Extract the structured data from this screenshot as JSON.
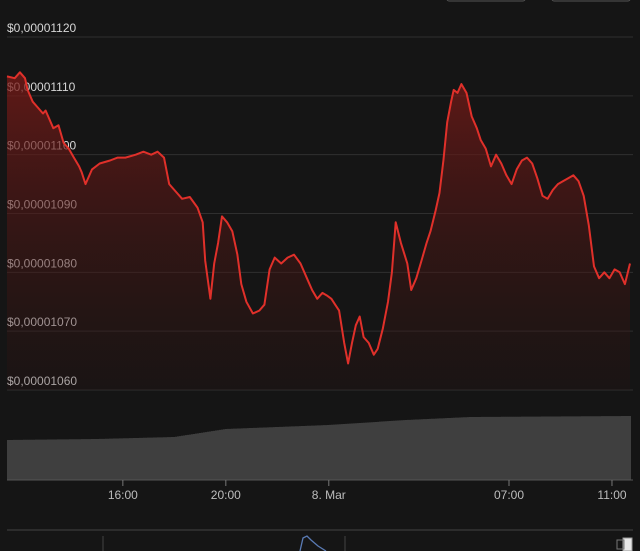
{
  "chart_data": {
    "type": "area",
    "title": "",
    "ylabel": "",
    "xlabel": "",
    "colors": {
      "line": "#e0302a",
      "volume": "#8e8e8e",
      "background": "#151515"
    },
    "y_ticks": [
      "$0,00001120",
      "$0,00001110",
      "$0,00001100",
      "$0,00001090",
      "$0,00001080",
      "$0,00001070",
      "$0,00001060"
    ],
    "y_tick_values": [
      1120,
      1110,
      1100,
      1090,
      1080,
      1070,
      1060
    ],
    "y_unit": "1e-8 USD",
    "ylim": [
      1060,
      1120
    ],
    "x_ticks": [
      "16:00",
      "20:00",
      "8. Mar",
      "07:00",
      "11:00"
    ],
    "x_tick_hours": [
      16,
      20,
      24,
      31,
      35
    ],
    "xlim_hours": [
      11.5,
      35.7
    ],
    "grid": true,
    "legend": "none",
    "series": [
      {
        "values": [
          [
            11.5,
            1113.3
          ],
          [
            11.8,
            1113.0
          ],
          [
            12.0,
            1114.0
          ],
          [
            12.2,
            1113.0
          ],
          [
            12.3,
            1111.0
          ],
          [
            12.5,
            1109.0
          ],
          [
            12.7,
            1108.0
          ],
          [
            12.9,
            1107.0
          ],
          [
            13.0,
            1107.5
          ],
          [
            13.3,
            1104.5
          ],
          [
            13.5,
            1105.0
          ],
          [
            13.7,
            1102.0
          ],
          [
            13.9,
            1101.0
          ],
          [
            14.1,
            1099.5
          ],
          [
            14.3,
            1098.0
          ],
          [
            14.4,
            1097.0
          ],
          [
            14.55,
            1095.0
          ],
          [
            14.8,
            1097.5
          ],
          [
            15.1,
            1098.5
          ],
          [
            15.5,
            1099.0
          ],
          [
            15.8,
            1099.5
          ],
          [
            16.1,
            1099.5
          ],
          [
            16.5,
            1100.0
          ],
          [
            16.8,
            1100.5
          ],
          [
            17.1,
            1100.0
          ],
          [
            17.35,
            1100.5
          ],
          [
            17.6,
            1099.5
          ],
          [
            17.8,
            1095.0
          ],
          [
            18.1,
            1093.5
          ],
          [
            18.3,
            1092.5
          ],
          [
            18.6,
            1092.8
          ],
          [
            18.9,
            1091.0
          ],
          [
            19.1,
            1088.5
          ],
          [
            19.2,
            1082.0
          ],
          [
            19.4,
            1075.5
          ],
          [
            19.55,
            1081.5
          ],
          [
            19.7,
            1085.0
          ],
          [
            19.85,
            1089.5
          ],
          [
            20.05,
            1088.5
          ],
          [
            20.25,
            1087.0
          ],
          [
            20.45,
            1083.0
          ],
          [
            20.6,
            1078.0
          ],
          [
            20.8,
            1075.0
          ],
          [
            21.05,
            1073.0
          ],
          [
            21.3,
            1073.5
          ],
          [
            21.5,
            1074.5
          ],
          [
            21.7,
            1080.5
          ],
          [
            21.9,
            1082.5
          ],
          [
            22.15,
            1081.5
          ],
          [
            22.4,
            1082.5
          ],
          [
            22.65,
            1083.0
          ],
          [
            22.9,
            1081.5
          ],
          [
            23.15,
            1079.0
          ],
          [
            23.35,
            1077.0
          ],
          [
            23.55,
            1075.5
          ],
          [
            23.75,
            1076.5
          ],
          [
            23.95,
            1076.0
          ],
          [
            24.1,
            1075.5
          ],
          [
            24.25,
            1074.5
          ],
          [
            24.4,
            1073.5
          ],
          [
            24.6,
            1068.0
          ],
          [
            24.75,
            1064.5
          ],
          [
            24.9,
            1068.0
          ],
          [
            25.05,
            1071.0
          ],
          [
            25.2,
            1072.5
          ],
          [
            25.35,
            1069.0
          ],
          [
            25.55,
            1068.0
          ],
          [
            25.75,
            1066.0
          ],
          [
            25.9,
            1067.0
          ],
          [
            26.1,
            1070.5
          ],
          [
            26.3,
            1075.0
          ],
          [
            26.45,
            1080.0
          ],
          [
            26.6,
            1088.5
          ],
          [
            26.8,
            1085.0
          ],
          [
            27.05,
            1081.5
          ],
          [
            27.2,
            1077.0
          ],
          [
            27.4,
            1079.0
          ],
          [
            27.6,
            1082.0
          ],
          [
            27.8,
            1085.0
          ],
          [
            27.95,
            1087.0
          ],
          [
            28.15,
            1090.5
          ],
          [
            28.3,
            1093.5
          ],
          [
            28.45,
            1099.0
          ],
          [
            28.6,
            1105.5
          ],
          [
            28.75,
            1109.0
          ],
          [
            28.85,
            1111.0
          ],
          [
            29.0,
            1110.5
          ],
          [
            29.15,
            1112.0
          ],
          [
            29.35,
            1110.5
          ],
          [
            29.55,
            1106.5
          ],
          [
            29.75,
            1104.5
          ],
          [
            29.9,
            1102.5
          ],
          [
            30.1,
            1101.0
          ],
          [
            30.3,
            1098.0
          ],
          [
            30.5,
            1100.0
          ],
          [
            30.7,
            1098.5
          ],
          [
            30.9,
            1096.5
          ],
          [
            31.1,
            1095.0
          ],
          [
            31.3,
            1097.5
          ],
          [
            31.5,
            1099.0
          ],
          [
            31.7,
            1099.5
          ],
          [
            31.9,
            1098.5
          ],
          [
            32.1,
            1096.0
          ],
          [
            32.3,
            1093.0
          ],
          [
            32.5,
            1092.5
          ],
          [
            32.7,
            1094.0
          ],
          [
            32.9,
            1095.0
          ],
          [
            33.1,
            1095.5
          ],
          [
            33.3,
            1096.0
          ],
          [
            33.5,
            1096.5
          ],
          [
            33.7,
            1095.5
          ],
          [
            33.9,
            1093.0
          ],
          [
            34.1,
            1088.0
          ],
          [
            34.3,
            1081.0
          ],
          [
            34.5,
            1079.0
          ],
          [
            34.7,
            1080.0
          ],
          [
            34.9,
            1079.0
          ],
          [
            35.1,
            1080.5
          ],
          [
            35.3,
            1080.0
          ],
          [
            35.5,
            1078.0
          ],
          [
            35.7,
            1081.5
          ]
        ]
      }
    ],
    "volume": {
      "description": "cumulative volume bars",
      "hours": [
        11.5,
        15.0,
        18.0,
        20.0,
        24.0,
        27.0,
        29.5,
        35.7
      ],
      "values": [
        40,
        41,
        43,
        51,
        55,
        60,
        63,
        64
      ]
    }
  }
}
